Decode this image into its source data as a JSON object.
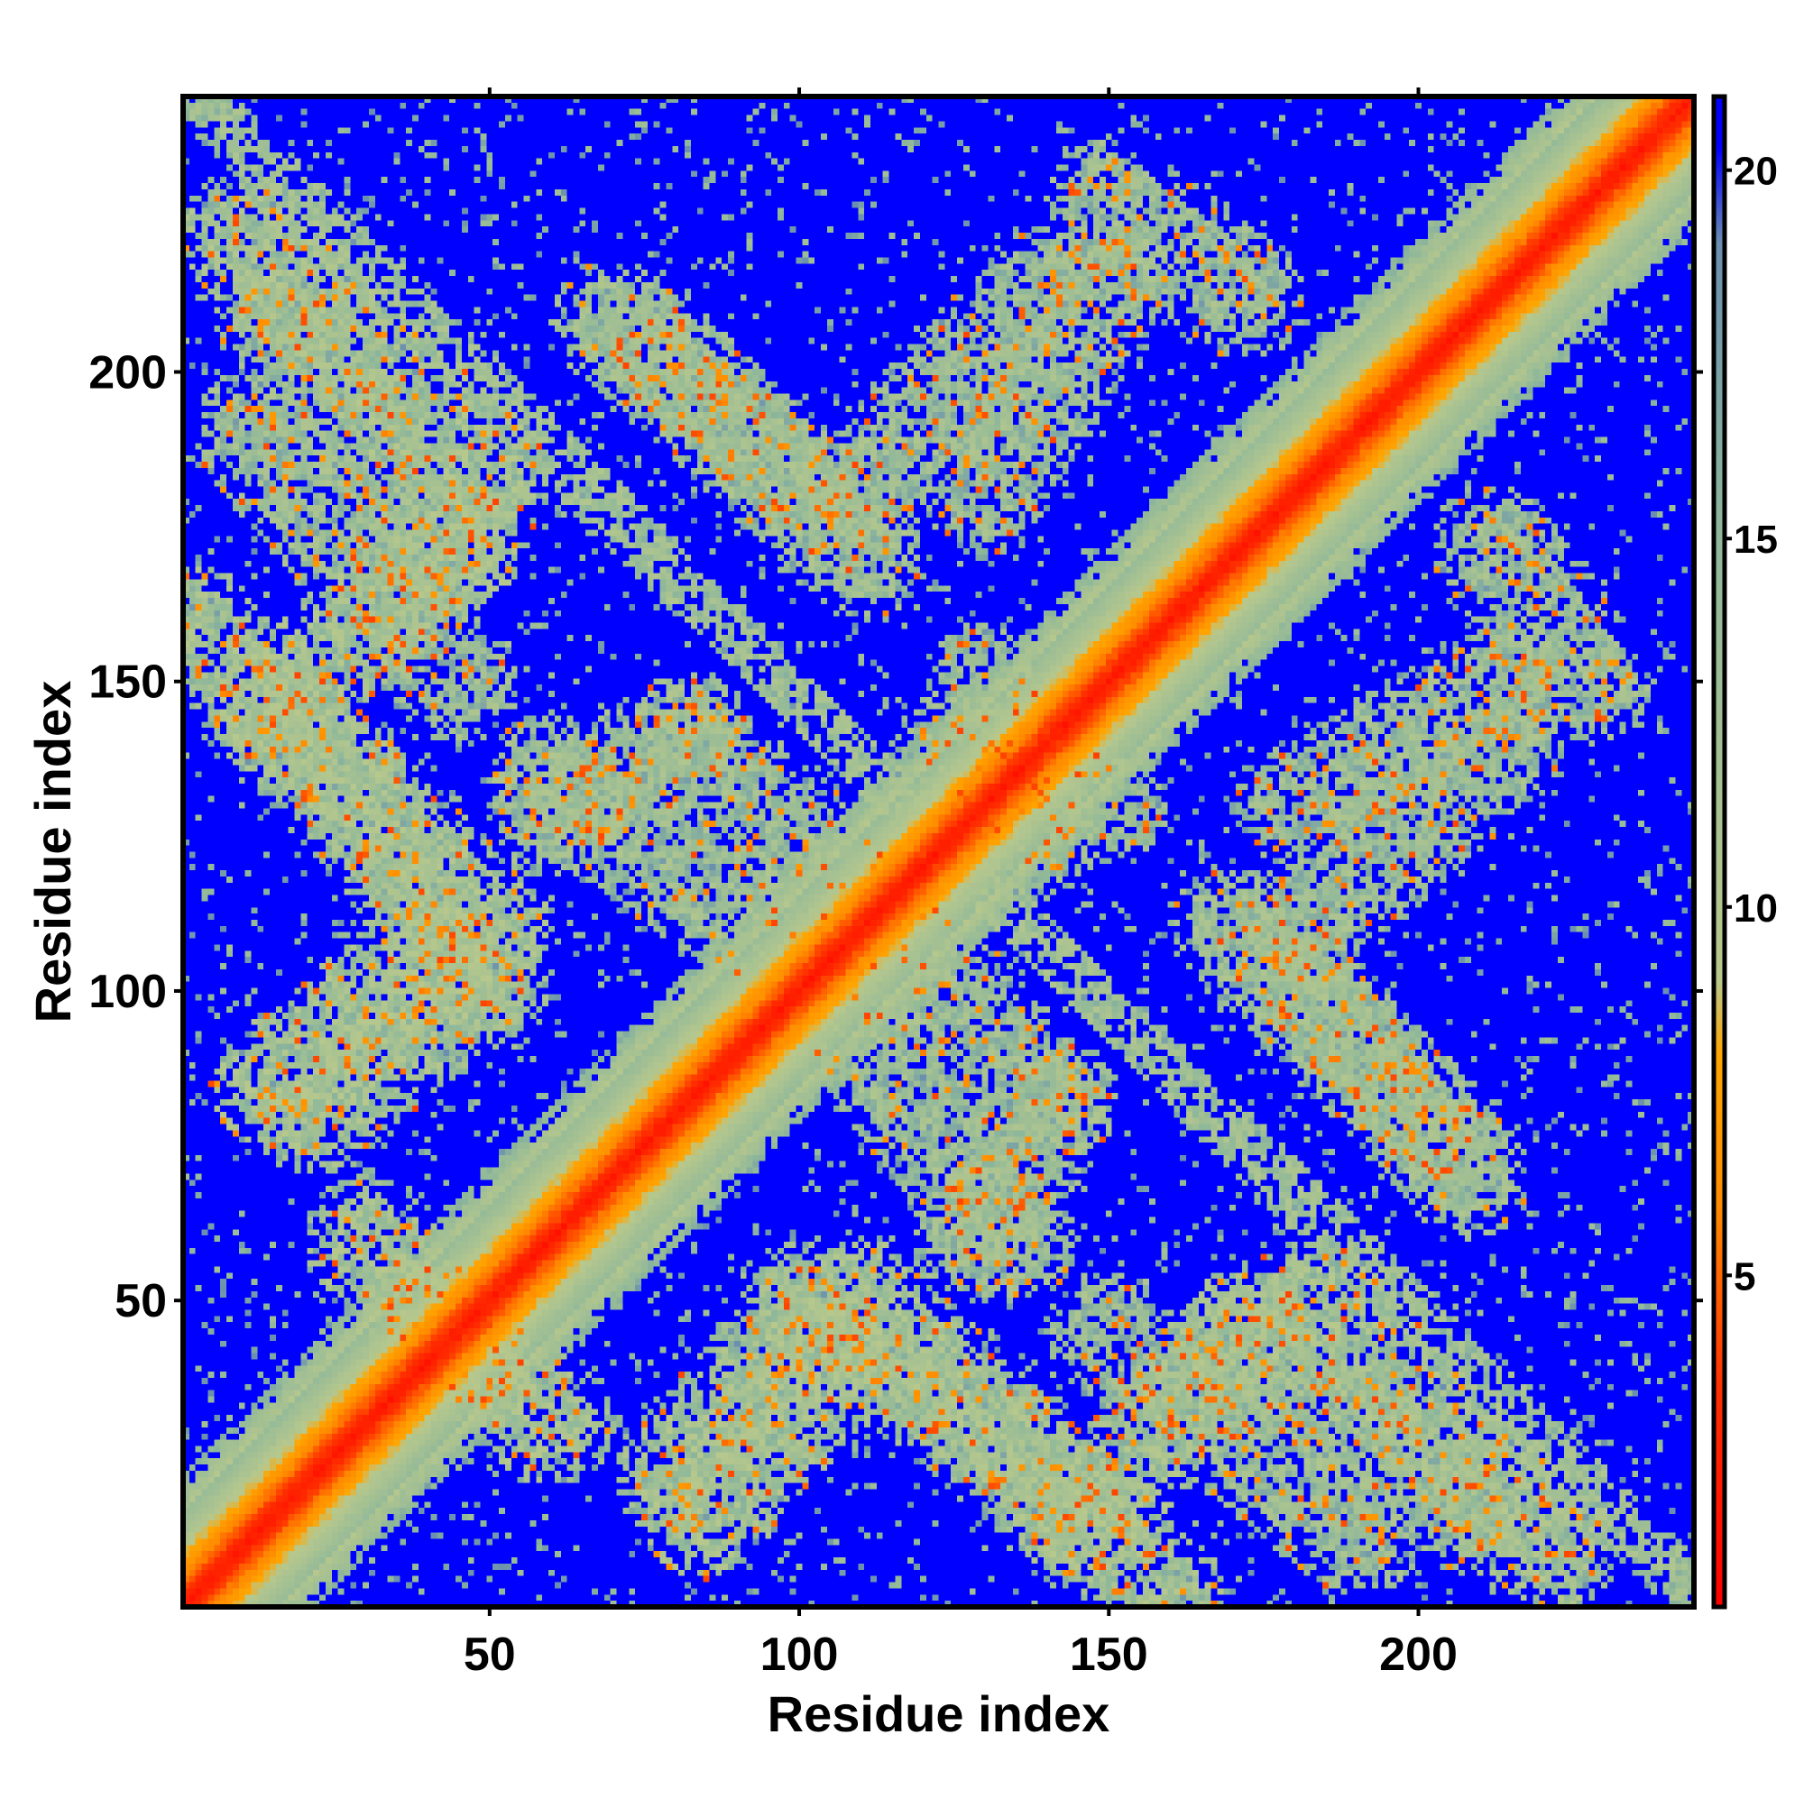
{
  "chart_data": {
    "type": "heatmap",
    "title": "",
    "xlabel": "Residue index",
    "ylabel": "Residue index",
    "xlim": [
      1,
      244
    ],
    "ylim": [
      1,
      244
    ],
    "x_ticks": [
      50,
      100,
      150,
      200
    ],
    "y_ticks": [
      50,
      100,
      150,
      200
    ],
    "colorbar": {
      "ticks": [
        5,
        10,
        15,
        20
      ],
      "range": [
        0.5,
        21
      ],
      "stops": [
        {
          "value": 0.5,
          "color": "#ff0000"
        },
        {
          "value": 3.5,
          "color": "#ff3000"
        },
        {
          "value": 6.0,
          "color": "#ff8c00"
        },
        {
          "value": 8.0,
          "color": "#ffa500"
        },
        {
          "value": 9.0,
          "color": "#b8c88c"
        },
        {
          "value": 15.0,
          "color": "#8fb89a"
        },
        {
          "value": 19.0,
          "color": "#6a8fb0"
        },
        {
          "value": 20.3,
          "color": "#0000ff"
        },
        {
          "value": 21.0,
          "color": "#0000ff"
        }
      ]
    },
    "background_value": 21,
    "background_color": "#0000ff",
    "pattern": "symmetric residue contact/distance map with a strong main diagonal (0-4 near the diagonal) and antiparallel off-diagonal bands (~8-16)",
    "features": [
      {
        "kind": "diagonal",
        "from": [
          1,
          1
        ],
        "to": [
          244,
          244
        ],
        "value": 1.5
      },
      {
        "kind": "anti-band",
        "from": [
          4,
          242
        ],
        "to": [
          244,
          4
        ],
        "value": 10
      },
      {
        "kind": "band",
        "from": [
          150,
          228
        ],
        "to": [
          172,
          212
        ],
        "value": 12
      },
      {
        "kind": "band",
        "from": [
          70,
          208
        ],
        "to": [
          102,
          180
        ],
        "value": 12
      },
      {
        "kind": "band",
        "from": [
          10,
          222
        ],
        "to": [
          50,
          182
        ],
        "value": 11
      },
      {
        "kind": "band",
        "from": [
          140,
          214
        ],
        "to": [
          110,
          180
        ],
        "value": 12
      },
      {
        "kind": "band",
        "from": [
          1,
          160
        ],
        "to": [
          50,
          110
        ],
        "value": 11
      },
      {
        "kind": "band",
        "from": [
          12,
          190
        ],
        "to": [
          45,
          150
        ],
        "value": 12
      },
      {
        "kind": "band",
        "from": [
          60,
          128
        ],
        "to": [
          82,
          142
        ],
        "value": 12
      },
      {
        "kind": "band",
        "from": [
          82,
          140
        ],
        "to": [
          105,
          120
        ],
        "value": 12
      },
      {
        "kind": "band",
        "from": [
          105,
          100
        ],
        "to": [
          135,
          60
        ],
        "value": 12
      },
      {
        "kind": "band",
        "from": [
          125,
          138
        ],
        "to": [
          150,
          130
        ],
        "value": 12
      },
      {
        "kind": "band",
        "from": [
          170,
          110
        ],
        "to": [
          205,
          75
        ],
        "value": 12
      },
      {
        "kind": "band",
        "from": [
          180,
          130
        ],
        "to": [
          215,
          150
        ],
        "value": 12
      },
      {
        "kind": "band",
        "from": [
          100,
          50
        ],
        "to": [
          140,
          20
        ],
        "value": 12
      },
      {
        "kind": "band",
        "from": [
          145,
          15
        ],
        "to": [
          172,
          45
        ],
        "value": 11
      },
      {
        "kind": "band",
        "from": [
          172,
          45
        ],
        "to": [
          210,
          15
        ],
        "value": 12
      },
      {
        "kind": "band",
        "from": [
          80,
          22
        ],
        "to": [
          100,
          45
        ],
        "value": 11
      },
      {
        "kind": "band",
        "from": [
          15,
          85
        ],
        "to": [
          40,
          105
        ],
        "value": 11
      },
      {
        "kind": "band",
        "from": [
          60,
          30
        ],
        "to": [
          40,
          48
        ],
        "value": 11
      }
    ]
  }
}
